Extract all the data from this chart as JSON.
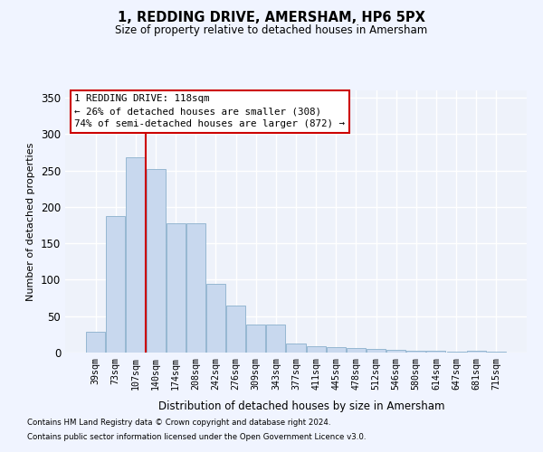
{
  "title": "1, REDDING DRIVE, AMERSHAM, HP6 5PX",
  "subtitle": "Size of property relative to detached houses in Amersham",
  "xlabel": "Distribution of detached houses by size in Amersham",
  "ylabel": "Number of detached properties",
  "bar_color": "#c8d8ee",
  "bar_edge_color": "#8ab0cc",
  "background_color": "#eef2fa",
  "grid_color": "#ffffff",
  "categories": [
    "39sqm",
    "73sqm",
    "107sqm",
    "140sqm",
    "174sqm",
    "208sqm",
    "242sqm",
    "276sqm",
    "309sqm",
    "343sqm",
    "377sqm",
    "411sqm",
    "445sqm",
    "478sqm",
    "512sqm",
    "546sqm",
    "580sqm",
    "614sqm",
    "647sqm",
    "681sqm",
    "715sqm"
  ],
  "values": [
    29,
    187,
    268,
    252,
    178,
    178,
    94,
    65,
    39,
    39,
    12,
    9,
    8,
    6,
    5,
    4,
    3,
    3,
    1,
    2,
    1
  ],
  "ylim": [
    0,
    360
  ],
  "yticks": [
    0,
    50,
    100,
    150,
    200,
    250,
    300,
    350
  ],
  "property_label": "1 REDDING DRIVE: 118sqm",
  "annotation_line1": "← 26% of detached houses are smaller (308)",
  "annotation_line2": "74% of semi-detached houses are larger (872) →",
  "annotation_box_color": "#ffffff",
  "annotation_box_edge": "#cc0000",
  "vline_color": "#cc0000",
  "footer_line1": "Contains HM Land Registry data © Crown copyright and database right 2024.",
  "footer_line2": "Contains public sector information licensed under the Open Government Licence v3.0."
}
